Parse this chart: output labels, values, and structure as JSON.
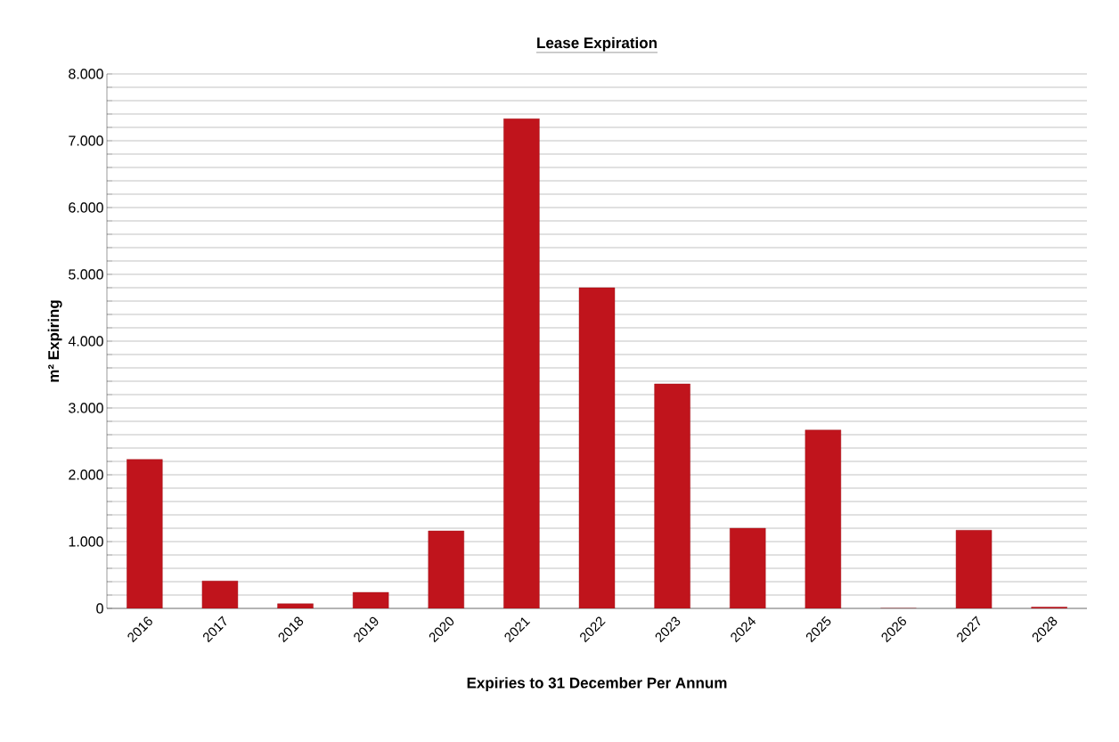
{
  "chart_data": {
    "type": "bar",
    "title": "Lease Expiration",
    "xlabel": "Expiries to 31 December Per Annum",
    "ylabel": "m² Expiring",
    "categories": [
      "2016",
      "2017",
      "2018",
      "2019",
      "2020",
      "2021",
      "2022",
      "2023",
      "2024",
      "2025",
      "2026",
      "2027",
      "2028"
    ],
    "values": [
      2230,
      410,
      70,
      240,
      1160,
      7330,
      4800,
      3360,
      1200,
      2670,
      0,
      1170,
      20
    ],
    "color": "#c0141c",
    "ylim": [
      0,
      8000
    ],
    "yticks": [
      0,
      {
        "value": 200,
        "label": null
      },
      {
        "value": 400,
        "label": null
      },
      {
        "value": 600,
        "label": null
      },
      {
        "value": 800,
        "label": null
      },
      {
        "value": 1000,
        "label": "1.000"
      },
      {
        "value": 1200,
        "label": null
      },
      {
        "value": 1400,
        "label": null
      },
      {
        "value": 1600,
        "label": null
      },
      {
        "value": 1800,
        "label": null
      },
      {
        "value": 2000,
        "label": "2.000"
      },
      {
        "value": 2200,
        "label": null
      },
      {
        "value": 2400,
        "label": null
      },
      {
        "value": 2600,
        "label": null
      },
      {
        "value": 2800,
        "label": null
      },
      {
        "value": 3000,
        "label": "3.000"
      },
      {
        "value": 3200,
        "label": null
      },
      {
        "value": 3400,
        "label": null
      },
      {
        "value": 3600,
        "label": null
      },
      {
        "value": 3800,
        "label": null
      },
      {
        "value": 4000,
        "label": "4.000"
      },
      {
        "value": 4200,
        "label": null
      },
      {
        "value": 4400,
        "label": null
      },
      {
        "value": 4600,
        "label": null
      },
      {
        "value": 4800,
        "label": null
      },
      {
        "value": 5000,
        "label": "5.000"
      },
      {
        "value": 5200,
        "label": null
      },
      {
        "value": 5400,
        "label": null
      },
      {
        "value": 5600,
        "label": null
      },
      {
        "value": 5800,
        "label": null
      },
      {
        "value": 6000,
        "label": "6.000"
      },
      {
        "value": 6200,
        "label": null
      },
      {
        "value": 6400,
        "label": null
      },
      {
        "value": 6600,
        "label": null
      },
      {
        "value": 6800,
        "label": null
      },
      {
        "value": 7000,
        "label": "7.000"
      },
      {
        "value": 7200,
        "label": null
      },
      {
        "value": 7400,
        "label": null
      },
      {
        "value": 7600,
        "label": null
      },
      {
        "value": 7800,
        "label": null
      },
      {
        "value": 8000,
        "label": "8.000"
      }
    ],
    "grid": "y"
  }
}
